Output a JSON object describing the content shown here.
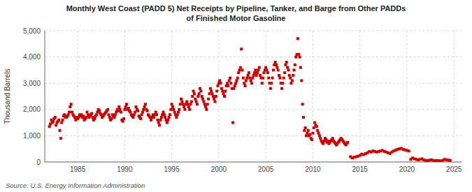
{
  "chart_data": {
    "type": "scatter",
    "title": "Monthly West Coast (PADD 5) Net Receipts by Pipeline, Tanker, and Barge from Other PADDs\nof Finished Motor Gasoline",
    "ylabel": "Thousand Barrels",
    "source": "Source: U.S. Energy Information Administration",
    "color": "#cc0000",
    "marker": "square",
    "grid": true,
    "xlim": [
      1981.5,
      2025.8
    ],
    "ylim": [
      0,
      5000
    ],
    "xticks": [
      1985,
      1990,
      1995,
      2000,
      2005,
      2010,
      2015,
      2020,
      2025
    ],
    "yticks": [
      0,
      {
        "value": 1000,
        "label": "1,000"
      },
      {
        "value": 2000,
        "label": "2,000"
      },
      {
        "value": 3000,
        "label": "3,000"
      },
      {
        "value": 4000,
        "label": "4,000"
      },
      {
        "value": 5000,
        "label": "5,000"
      }
    ],
    "x": [
      1982.0,
      1982.1,
      1982.2,
      1982.3,
      1982.4,
      1982.5,
      1982.6,
      1982.7,
      1982.8,
      1982.9,
      1983.0,
      1983.1,
      1983.2,
      1983.3,
      1983.4,
      1983.5,
      1983.6,
      1983.7,
      1983.8,
      1983.9,
      1984.0,
      1984.1,
      1984.2,
      1984.3,
      1984.4,
      1984.5,
      1984.6,
      1984.7,
      1984.8,
      1984.9,
      1985.0,
      1985.1,
      1985.2,
      1985.3,
      1985.4,
      1985.5,
      1985.6,
      1985.7,
      1985.8,
      1985.9,
      1986.0,
      1986.1,
      1986.2,
      1986.3,
      1986.4,
      1986.5,
      1986.6,
      1986.7,
      1986.8,
      1986.9,
      1987.0,
      1987.1,
      1987.2,
      1987.3,
      1987.4,
      1987.5,
      1987.6,
      1987.7,
      1987.8,
      1987.9,
      1988.0,
      1988.1,
      1988.2,
      1988.3,
      1988.4,
      1988.5,
      1988.6,
      1988.7,
      1988.8,
      1988.9,
      1989.0,
      1989.1,
      1989.2,
      1989.3,
      1989.4,
      1989.5,
      1989.6,
      1989.7,
      1989.8,
      1989.9,
      1990.0,
      1990.1,
      1990.2,
      1990.3,
      1990.4,
      1990.5,
      1990.6,
      1990.7,
      1990.8,
      1990.9,
      1991.0,
      1991.1,
      1991.2,
      1991.3,
      1991.4,
      1991.5,
      1991.6,
      1991.7,
      1991.8,
      1991.9,
      1992.0,
      1992.1,
      1992.2,
      1992.3,
      1992.4,
      1992.5,
      1992.6,
      1992.7,
      1992.8,
      1992.9,
      1993.0,
      1993.1,
      1993.2,
      1993.3,
      1993.4,
      1993.5,
      1993.6,
      1993.7,
      1993.8,
      1993.9,
      1994.0,
      1994.1,
      1994.2,
      1994.3,
      1994.4,
      1994.5,
      1994.6,
      1994.7,
      1994.8,
      1994.9,
      1995.0,
      1995.1,
      1995.2,
      1995.3,
      1995.4,
      1995.5,
      1995.6,
      1995.7,
      1995.8,
      1995.9,
      1996.0,
      1996.1,
      1996.2,
      1996.3,
      1996.4,
      1996.5,
      1996.6,
      1996.7,
      1996.8,
      1996.9,
      1997.0,
      1997.1,
      1997.2,
      1997.3,
      1997.4,
      1997.5,
      1997.6,
      1997.7,
      1997.8,
      1997.9,
      1998.0,
      1998.1,
      1998.2,
      1998.3,
      1998.4,
      1998.5,
      1998.6,
      1998.7,
      1998.8,
      1998.9,
      1999.0,
      1999.1,
      1999.2,
      1999.3,
      1999.4,
      1999.5,
      1999.6,
      1999.7,
      1999.8,
      1999.9,
      2000.0,
      2000.1,
      2000.2,
      2000.3,
      2000.4,
      2000.5,
      2000.6,
      2000.7,
      2000.8,
      2000.9,
      2001.0,
      2001.1,
      2001.2,
      2001.3,
      2001.4,
      2001.5,
      2001.6,
      2001.7,
      2001.8,
      2001.9,
      2002.0,
      2002.1,
      2002.2,
      2002.3,
      2002.4,
      2002.5,
      2002.6,
      2002.7,
      2002.8,
      2002.9,
      2003.0,
      2003.1,
      2003.2,
      2003.3,
      2003.4,
      2003.5,
      2003.6,
      2003.7,
      2003.8,
      2003.9,
      2004.0,
      2004.1,
      2004.2,
      2004.3,
      2004.4,
      2004.5,
      2004.6,
      2004.7,
      2004.8,
      2004.9,
      2005.0,
      2005.1,
      2005.2,
      2005.3,
      2005.4,
      2005.5,
      2005.6,
      2005.7,
      2005.8,
      2005.9,
      2006.0,
      2006.1,
      2006.2,
      2006.3,
      2006.4,
      2006.5,
      2006.6,
      2006.7,
      2006.8,
      2006.9,
      2007.0,
      2007.1,
      2007.2,
      2007.3,
      2007.4,
      2007.5,
      2007.6,
      2007.7,
      2007.8,
      2007.9,
      2008.0,
      2008.1,
      2008.2,
      2008.3,
      2008.4,
      2008.5,
      2008.6,
      2008.7,
      2008.8,
      2008.9,
      2009.0,
      2009.1,
      2009.2,
      2009.3,
      2009.4,
      2009.5,
      2009.6,
      2009.7,
      2009.8,
      2009.9,
      2010.0,
      2010.1,
      2010.2,
      2010.3,
      2010.4,
      2010.5,
      2010.6,
      2010.7,
      2010.8,
      2010.9,
      2011.0,
      2011.1,
      2011.2,
      2011.3,
      2011.4,
      2011.5,
      2011.6,
      2011.7,
      2011.8,
      2011.9,
      2012.0,
      2012.1,
      2012.2,
      2012.3,
      2012.4,
      2012.5,
      2012.6,
      2012.7,
      2012.8,
      2012.9,
      2013.0,
      2013.1,
      2013.2,
      2013.3,
      2013.4,
      2013.5,
      2013.6,
      2013.7,
      2014.0,
      2014.2,
      2014.4,
      2014.6,
      2014.8,
      2015.0,
      2015.2,
      2015.4,
      2015.6,
      2015.8,
      2016.0,
      2016.2,
      2016.4,
      2016.6,
      2016.8,
      2017.0,
      2017.2,
      2017.4,
      2017.6,
      2017.8,
      2018.0,
      2018.2,
      2018.4,
      2018.6,
      2018.8,
      2019.0,
      2019.2,
      2019.4,
      2019.6,
      2019.8,
      2020.0,
      2020.2,
      2020.4,
      2020.6,
      2020.8,
      2021.0,
      2021.2,
      2021.4,
      2021.6,
      2021.8,
      2022.0,
      2022.2,
      2022.4,
      2022.6,
      2022.8,
      2023.0,
      2023.2,
      2023.4,
      2023.6,
      2023.8,
      2024.0,
      2024.2,
      2024.4,
      2024.6
    ],
    "values": [
      1350,
      1450,
      1600,
      1500,
      1550,
      1650,
      1700,
      1400,
      1500,
      1550,
      1600,
      1200,
      900,
      1500,
      1600,
      1750,
      1800,
      1700,
      1700,
      1750,
      1800,
      1900,
      2100,
      2200,
      1900,
      1800,
      1750,
      1700,
      1600,
      1700,
      1650,
      1700,
      1800,
      1750,
      1800,
      1700,
      1750,
      1600,
      1650,
      1700,
      1900,
      1800,
      1700,
      1750,
      1800,
      1850,
      1700,
      1600,
      1650,
      1750,
      1800,
      1900,
      2000,
      1950,
      1850,
      1800,
      1700,
      1750,
      1800,
      1850,
      1900,
      1950,
      2000,
      1800,
      1700,
      1600,
      1650,
      1800,
      1750,
      1700,
      1800,
      1900,
      2000,
      1950,
      2100,
      2000,
      1900,
      1600,
      1550,
      1650,
      2000,
      2100,
      2200,
      2000,
      2050,
      1950,
      1900,
      1800,
      1750,
      1700,
      1800,
      1900,
      2100,
      2000,
      1950,
      1750,
      1700,
      1650,
      1800,
      1900,
      2000,
      2100,
      2200,
      2000,
      1950,
      1800,
      1750,
      1700,
      1600,
      1700,
      1800,
      1700,
      1800,
      1900,
      1800,
      1600,
      1500,
      1400,
      1600,
      1700,
      1800,
      1900,
      1800,
      1700,
      1600,
      1500,
      1600,
      1700,
      1800,
      2000,
      2200,
      2100,
      2000,
      1900,
      1800,
      1700,
      1800,
      1900,
      2000,
      2200,
      2400,
      2300,
      2200,
      2100,
      2000,
      2200,
      2300,
      2200,
      2100,
      2000,
      2200,
      2300,
      2500,
      2700,
      2600,
      2400,
      2300,
      2200,
      2500,
      2600,
      2800,
      2700,
      2500,
      2400,
      2300,
      2200,
      2100,
      2000,
      2200,
      2400,
      2600,
      2800,
      2700,
      2600,
      2500,
      2400,
      2300,
      2500,
      2700,
      2900,
      3000,
      3100,
      3000,
      2800,
      2700,
      2600,
      2500,
      2700,
      2900,
      3000,
      2900,
      3100,
      3200,
      3000,
      2800,
      1500,
      2800,
      2900,
      3000,
      3100,
      3200,
      3400,
      3500,
      3600,
      4300,
      3500,
      3200,
      3000,
      2900,
      3100,
      3200,
      3300,
      3400,
      3200,
      3100,
      3000,
      3200,
      3300,
      3400,
      3500,
      3300,
      3400,
      3500,
      3600,
      3300,
      3200,
      3000,
      3200,
      3400,
      3500,
      3600,
      3500,
      3400,
      3200,
      3000,
      2800,
      3000,
      3200,
      3500,
      3700,
      3800,
      3700,
      3600,
      3500,
      3300,
      3200,
      3000,
      2800,
      3000,
      3200,
      3400,
      3700,
      3800,
      3600,
      3500,
      3300,
      3200,
      3000,
      3100,
      3300,
      3500,
      3700,
      4000,
      4100,
      4700,
      4100,
      4000,
      3600,
      3100,
      2200,
      1700,
      1200,
      1300,
      1000,
      1100,
      1200,
      1000,
      1050,
      900,
      850,
      1100,
      1300,
      1500,
      1400,
      1350,
      1200,
      1100,
      1000,
      900,
      800,
      750,
      700,
      800,
      900,
      850,
      750,
      800,
      700,
      750,
      800,
      850,
      900,
      800,
      750,
      700,
      650,
      700,
      750,
      800,
      850,
      900,
      850,
      800,
      750,
      700,
      650,
      700,
      750,
      200,
      150,
      180,
      200,
      220,
      250,
      300,
      280,
      320,
      350,
      400,
      380,
      420,
      400,
      380,
      400,
      420,
      440,
      400,
      380,
      350,
      320,
      380,
      420,
      450,
      480,
      500,
      520,
      480,
      460,
      440,
      420,
      100,
      150,
      120,
      100,
      80,
      100,
      120,
      80,
      60,
      50,
      70,
      80,
      60,
      50,
      60,
      50,
      40,
      60,
      100,
      80,
      70,
      60
    ]
  }
}
